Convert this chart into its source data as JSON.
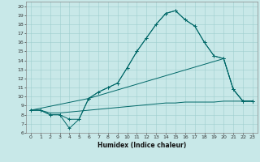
{
  "xlabel": "Humidex (Indice chaleur)",
  "bg_color": "#c8e8e8",
  "line_color": "#006868",
  "xlim": [
    -0.5,
    23.5
  ],
  "ylim": [
    6,
    20.5
  ],
  "xticks": [
    0,
    1,
    2,
    3,
    4,
    5,
    6,
    7,
    8,
    9,
    10,
    11,
    12,
    13,
    14,
    15,
    16,
    17,
    18,
    19,
    20,
    21,
    22,
    23
  ],
  "yticks": [
    6,
    7,
    8,
    9,
    10,
    11,
    12,
    13,
    14,
    15,
    16,
    17,
    18,
    19,
    20
  ],
  "line1_x": [
    0,
    1,
    2,
    3,
    4,
    5,
    6,
    7,
    8,
    9,
    10,
    11,
    12,
    13,
    14,
    15,
    16,
    17,
    18,
    19,
    20,
    21,
    22,
    23
  ],
  "line1_y": [
    8.5,
    8.5,
    8.0,
    8.0,
    6.5,
    7.5,
    9.8,
    10.5,
    11.0,
    11.5,
    13.2,
    15.0,
    16.5,
    18.0,
    19.2,
    19.5,
    18.5,
    17.8,
    16.0,
    14.5,
    14.2,
    10.8,
    9.5,
    9.5
  ],
  "line2_x": [
    0,
    1,
    2,
    3,
    4,
    5,
    6,
    7,
    8,
    9,
    10,
    11,
    12,
    13,
    14,
    15,
    16,
    17,
    18,
    19,
    20,
    21,
    22,
    23
  ],
  "line2_y": [
    8.5,
    8.5,
    8.0,
    8.0,
    7.5,
    7.5,
    9.8,
    10.5,
    11.0,
    11.5,
    13.2,
    15.0,
    16.5,
    18.0,
    19.2,
    19.5,
    18.5,
    17.8,
    16.0,
    14.5,
    14.2,
    10.8,
    9.5,
    9.5
  ],
  "line3_x": [
    0,
    6,
    20,
    21,
    22,
    23
  ],
  "line3_y": [
    8.5,
    9.8,
    14.2,
    10.8,
    9.5,
    9.5
  ],
  "line4_x": [
    0,
    1,
    2,
    3,
    4,
    5,
    6,
    7,
    8,
    9,
    10,
    11,
    12,
    13,
    14,
    15,
    16,
    17,
    18,
    19,
    20,
    21,
    22,
    23
  ],
  "line4_y": [
    8.5,
    8.5,
    8.2,
    8.2,
    8.3,
    8.4,
    8.5,
    8.6,
    8.7,
    8.8,
    8.9,
    9.0,
    9.1,
    9.2,
    9.3,
    9.3,
    9.4,
    9.4,
    9.4,
    9.4,
    9.5,
    9.5,
    9.5,
    9.5
  ],
  "grid_color": "#9ecece"
}
